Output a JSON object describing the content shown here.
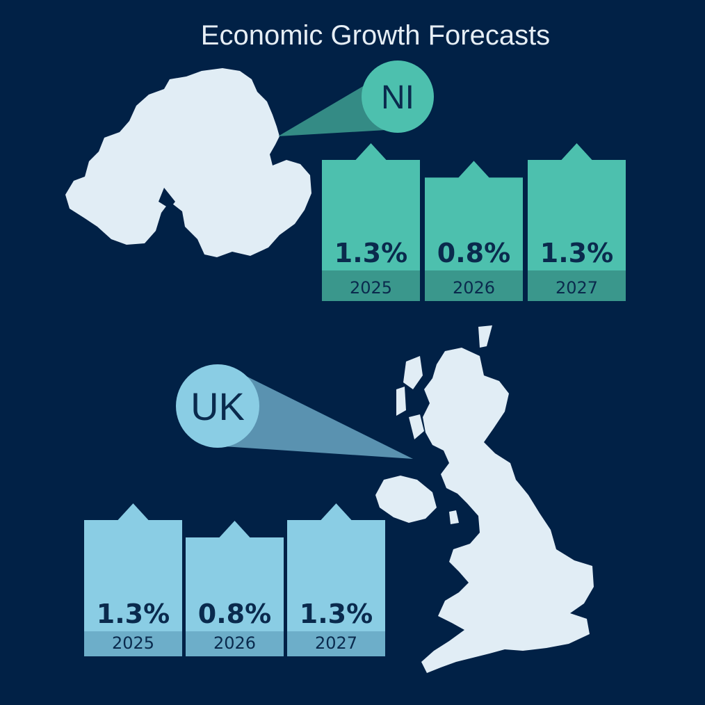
{
  "title": "Economic Growth Forecasts",
  "colors": {
    "background": "#012146",
    "map": "#E1EDF5",
    "ni_bar": "#4DC0AE",
    "ni_bar_base": "#3A978C",
    "ni_callout": "#3A978C",
    "uk_bar": "#8ACDE4",
    "uk_bar_base": "#6DAEC9",
    "uk_callout": "#5A92B0",
    "label_text": "#0A2A4D"
  },
  "chart_data": [
    {
      "type": "bar",
      "region": "NI",
      "title": "",
      "categories": [
        "2025",
        "2026",
        "2027"
      ],
      "values": [
        1.3,
        0.8,
        1.3
      ],
      "value_labels": [
        "1.3%",
        "0.8%",
        "1.3%"
      ],
      "unit": "%",
      "xlabel": "",
      "ylabel": "",
      "grid": false
    },
    {
      "type": "bar",
      "region": "UK",
      "title": "",
      "categories": [
        "2025",
        "2026",
        "2027"
      ],
      "values": [
        1.3,
        0.8,
        1.3
      ],
      "value_labels": [
        "1.3%",
        "0.8%",
        "1.3%"
      ],
      "unit": "%",
      "xlabel": "",
      "ylabel": "",
      "grid": false
    }
  ]
}
